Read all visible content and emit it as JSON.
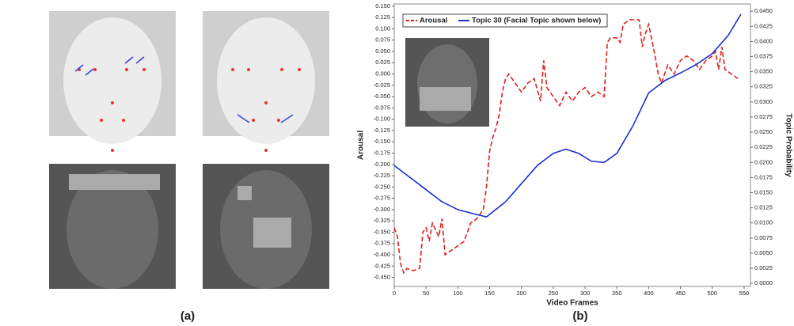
{
  "panels": [
    "(a)",
    "(b)"
  ],
  "chart_data": {
    "type": "line",
    "xlabel": "Video Frames",
    "ylabel": "Arousal",
    "y2label": "Topic Probability",
    "xlim": [
      0,
      560
    ],
    "xticks": [
      0,
      50,
      100,
      150,
      200,
      250,
      300,
      350,
      400,
      450,
      500,
      550
    ],
    "ylim": [
      -0.47,
      0.155
    ],
    "yticks": [
      {
        "value": 0.15,
        "label": "0.150"
      },
      {
        "value": 0.125,
        "label": "0.125"
      },
      {
        "value": 0.1,
        "label": "0.100"
      },
      {
        "value": 0.075,
        "label": "0.075"
      },
      {
        "value": 0.05,
        "label": "0.050"
      },
      {
        "value": 0.025,
        "label": "0.025"
      },
      {
        "value": 0,
        "label": "0.000"
      },
      {
        "value": -0.025,
        "label": "-0.025"
      },
      {
        "value": -0.05,
        "label": "-0.050"
      },
      {
        "value": -0.075,
        "label": "-0.075"
      },
      {
        "value": -0.1,
        "label": "-0.100"
      },
      {
        "value": -0.125,
        "label": "-0.125"
      },
      {
        "value": -0.15,
        "label": "-0.150"
      },
      {
        "value": -0.175,
        "label": "-0.175"
      },
      {
        "value": -0.2,
        "label": "-0.200"
      },
      {
        "value": -0.225,
        "label": "-0.225"
      },
      {
        "value": -0.25,
        "label": "-0.250"
      },
      {
        "value": -0.275,
        "label": "-0.275"
      },
      {
        "value": -0.3,
        "label": "-0.300"
      },
      {
        "value": -0.325,
        "label": "-0.325"
      },
      {
        "value": -0.35,
        "label": "-0.350"
      },
      {
        "value": -0.375,
        "label": "-0.375"
      },
      {
        "value": -0.4,
        "label": "-0.400"
      },
      {
        "value": -0.425,
        "label": "-0.425"
      },
      {
        "value": -0.45,
        "label": "-0.450"
      }
    ],
    "y2lim": [
      -0.0005,
      0.0462
    ],
    "y2ticks": [
      {
        "value": 0,
        "label": "0.0000"
      },
      {
        "value": 0.0025,
        "label": "0.0025"
      },
      {
        "value": 0.005,
        "label": "0.0050"
      },
      {
        "value": 0.0075,
        "label": "0.0075"
      },
      {
        "value": 0.01,
        "label": "0.0100"
      },
      {
        "value": 0.0125,
        "label": "0.0125"
      },
      {
        "value": 0.015,
        "label": "0.0150"
      },
      {
        "value": 0.0175,
        "label": "0.0175"
      },
      {
        "value": 0.02,
        "label": "0.0200"
      },
      {
        "value": 0.0225,
        "label": "0.0225"
      },
      {
        "value": 0.025,
        "label": "0.0250"
      },
      {
        "value": 0.0275,
        "label": "0.0275"
      },
      {
        "value": 0.03,
        "label": "0.0300"
      },
      {
        "value": 0.0325,
        "label": "0.0325"
      },
      {
        "value": 0.035,
        "label": "0.0350"
      },
      {
        "value": 0.0375,
        "label": "0.0375"
      },
      {
        "value": 0.04,
        "label": "0.0400"
      },
      {
        "value": 0.0425,
        "label": "0.0425"
      },
      {
        "value": 0.045,
        "label": "0.0450"
      }
    ],
    "series": [
      {
        "name": "Arousal",
        "color": "#e02020",
        "dash": true,
        "x": [
          0,
          5,
          10,
          15,
          20,
          30,
          40,
          45,
          50,
          55,
          60,
          70,
          75,
          80,
          90,
          100,
          110,
          120,
          130,
          140,
          145,
          150,
          155,
          160,
          165,
          170,
          175,
          180,
          190,
          200,
          210,
          220,
          230,
          235,
          240,
          250,
          260,
          270,
          280,
          290,
          300,
          310,
          320,
          330,
          335,
          340,
          350,
          355,
          360,
          370,
          380,
          385,
          390,
          395,
          400,
          410,
          415,
          420,
          430,
          440,
          450,
          460,
          470,
          480,
          490,
          500,
          505,
          510,
          515,
          520,
          530,
          540
        ],
        "values": [
          -0.34,
          -0.36,
          -0.42,
          -0.44,
          -0.43,
          -0.435,
          -0.43,
          -0.35,
          -0.34,
          -0.37,
          -0.33,
          -0.36,
          -0.32,
          -0.4,
          -0.39,
          -0.38,
          -0.37,
          -0.33,
          -0.32,
          -0.3,
          -0.25,
          -0.17,
          -0.14,
          -0.12,
          -0.09,
          -0.04,
          -0.01,
          0,
          -0.02,
          -0.04,
          -0.02,
          -0.01,
          -0.06,
          0.03,
          -0.03,
          -0.05,
          -0.07,
          -0.04,
          -0.06,
          -0.04,
          -0.03,
          -0.05,
          -0.04,
          -0.05,
          0.07,
          0.08,
          0.08,
          0.07,
          0.11,
          0.12,
          0.12,
          0.12,
          0.06,
          0.09,
          0.11,
          0.04,
          0,
          -0.02,
          0.02,
          0,
          0.03,
          0.04,
          0.03,
          0.01,
          0.03,
          0.04,
          0.05,
          0.01,
          0.06,
          0.01,
          0,
          -0.01
        ]
      },
      {
        "name": "Topic 30 (Facial Topic shown below)",
        "color": "#1a2fd0",
        "dash": false,
        "axis": "y2",
        "x": [
          0,
          25,
          50,
          75,
          100,
          125,
          145,
          175,
          200,
          225,
          250,
          270,
          290,
          310,
          330,
          350,
          375,
          400,
          425,
          450,
          475,
          500,
          525,
          545
        ],
        "values": [
          0.0195,
          0.0175,
          0.0155,
          0.0135,
          0.0122,
          0.0115,
          0.011,
          0.0135,
          0.0165,
          0.0195,
          0.0215,
          0.0222,
          0.0215,
          0.0202,
          0.02,
          0.0215,
          0.026,
          0.0315,
          0.0335,
          0.0348,
          0.0362,
          0.038,
          0.041,
          0.0445
        ]
      }
    ]
  }
}
